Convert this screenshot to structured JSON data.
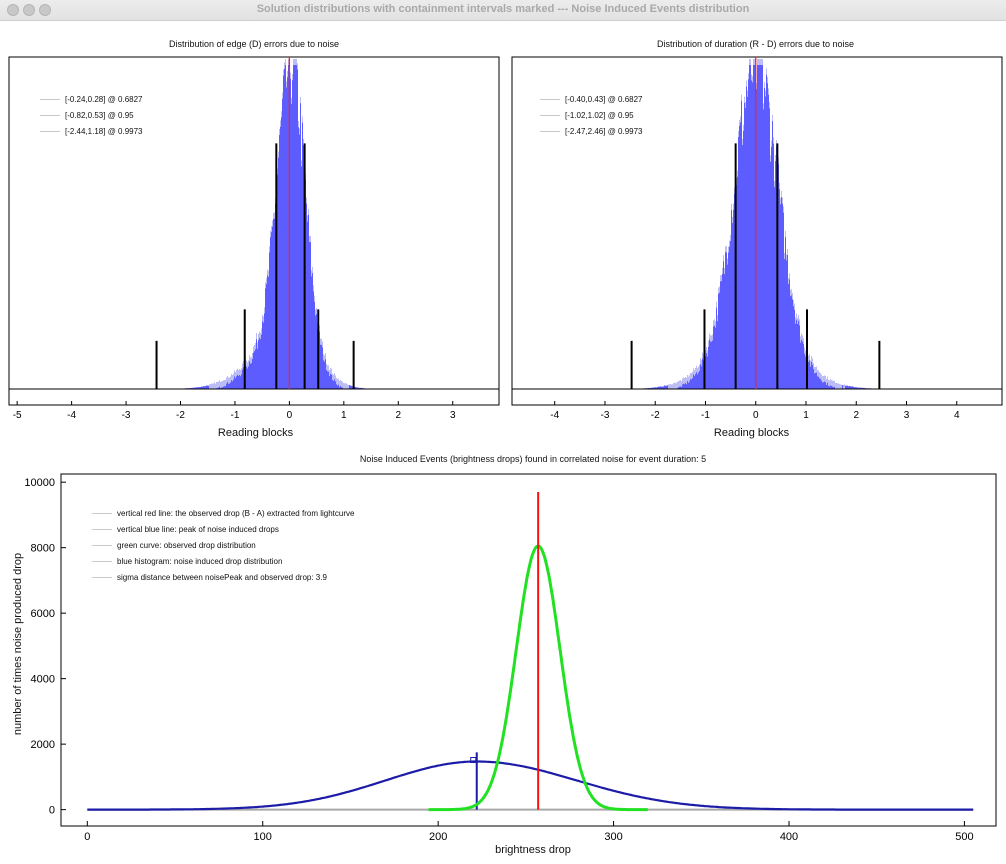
{
  "window": {
    "title": "Solution distributions with containment intervals marked --- Noise Induced Events distribution"
  },
  "chart_data": [
    {
      "type": "bar",
      "title": "Distribution of edge (D) errors due to noise",
      "xlabel": "Reading blocks",
      "ylabel": "",
      "xlim": [
        -5.15,
        3.85
      ],
      "x_ticks": [
        "-5",
        "-4",
        "-3",
        "-2",
        "-1",
        "0",
        "1",
        "2",
        "3"
      ],
      "distribution": {
        "center": 0.03,
        "sigma_left": 0.26,
        "sigma_right": 0.24,
        "tail_left": 0.65,
        "tail_right": 0.45
      },
      "red_line_x": 0,
      "interval_marks": [
        {
          "x": -0.24,
          "height_frac": 0.74
        },
        {
          "x": 0.28,
          "height_frac": 0.74
        },
        {
          "x": -0.82,
          "height_frac": 0.24
        },
        {
          "x": 0.53,
          "height_frac": 0.24
        },
        {
          "x": -2.44,
          "height_frac": 0.145
        },
        {
          "x": 1.18,
          "height_frac": 0.145
        }
      ],
      "legend": [
        {
          "label": "[-0.24,0.28] @ 0.6827"
        },
        {
          "label": "[-0.82,0.53] @ 0.95"
        },
        {
          "label": "[-2.44,1.18] @ 0.9973"
        }
      ],
      "colors": {
        "histogram": "#5c5cff",
        "red_line": "#ff2020",
        "marks": "#000000"
      }
    },
    {
      "type": "bar",
      "title": "Distribution of duration (R - D) errors due to noise",
      "xlabel": "Reading blocks",
      "ylabel": "",
      "xlim": [
        -4.85,
        4.9
      ],
      "x_ticks": [
        "-4",
        "-3",
        "-2",
        "-1",
        "0",
        "1",
        "2",
        "3",
        "4"
      ],
      "distribution": {
        "center": 0.0,
        "sigma_left": 0.42,
        "sigma_right": 0.42,
        "tail_left": 0.75,
        "tail_right": 0.75
      },
      "red_line_x": 0,
      "interval_marks": [
        {
          "x": -0.4,
          "height_frac": 0.74
        },
        {
          "x": 0.43,
          "height_frac": 0.74
        },
        {
          "x": -1.02,
          "height_frac": 0.24
        },
        {
          "x": 1.02,
          "height_frac": 0.24
        },
        {
          "x": -2.47,
          "height_frac": 0.145
        },
        {
          "x": 2.46,
          "height_frac": 0.145
        }
      ],
      "legend": [
        {
          "label": "[-0.40,0.43] @ 0.6827"
        },
        {
          "label": "[-1.02,1.02] @ 0.95"
        },
        {
          "label": "[-2.47,2.46] @ 0.9973"
        }
      ],
      "colors": {
        "histogram": "#5c5cff",
        "red_line": "#ff2020",
        "marks": "#000000"
      }
    },
    {
      "type": "line",
      "title": "Noise Induced Events (brightness drops) found in correlated noise for event duration: 5",
      "xlabel": "brightness drop",
      "ylabel": "number of times noise produced drop",
      "xlim": [
        -15,
        518
      ],
      "ylim": [
        -500,
        10250
      ],
      "x_ticks": [
        "0",
        "100",
        "200",
        "300",
        "400",
        "500"
      ],
      "y_ticks": [
        "0",
        "2000",
        "4000",
        "6000",
        "8000",
        "10000"
      ],
      "series": [
        {
          "curve": "blue_noise_histogram",
          "mean": 222,
          "sigma_left": 52,
          "sigma_right": 57,
          "peak": 1470
        },
        {
          "curve": "green_observed_drop_distribution",
          "mean": 257,
          "sigma": 12.5,
          "peak": 8050
        }
      ],
      "red_line": {
        "x": 257,
        "y_top": 9700
      },
      "blue_line": {
        "x": 222,
        "y_top": 1750
      },
      "legend": [
        {
          "label": "vertical red line: the observed drop (B - A) extracted from lightcurve"
        },
        {
          "label": "vertical blue line: peak of noise induced drops"
        },
        {
          "label": "green curve: observed drop distribution"
        },
        {
          "label": "blue histogram: noise induced drop distribution"
        },
        {
          "label": "sigma distance between noisePeak and observed drop: 3.9"
        }
      ],
      "colors": {
        "blue": "#1c1ca8",
        "green": "#22e022",
        "red": "#ff1010",
        "baseline": "#a8a8a8"
      }
    }
  ]
}
